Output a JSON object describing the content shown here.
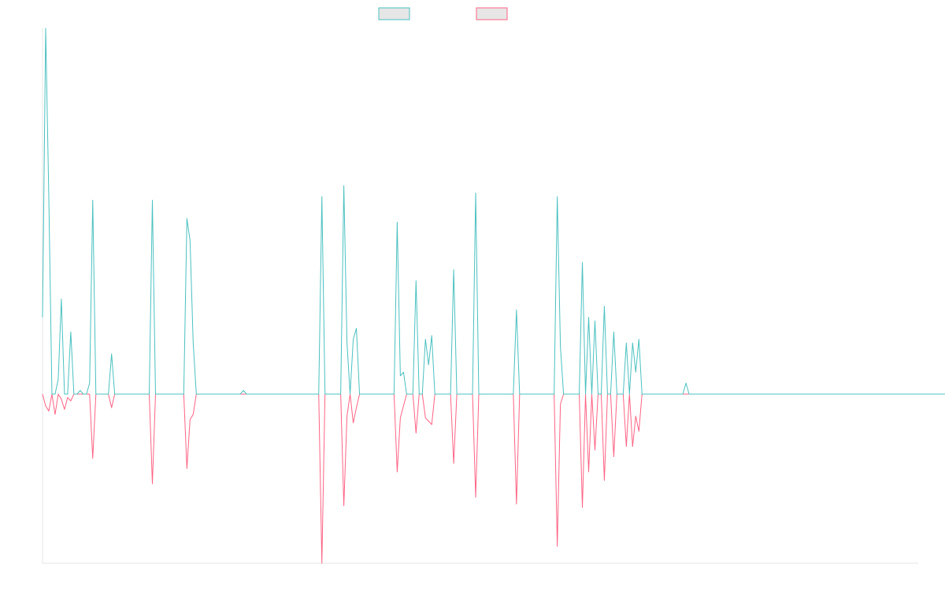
{
  "chart_data": {
    "type": "line",
    "title": "",
    "xlabel": "",
    "ylabel": "",
    "grid": false,
    "legend_position": "top-center",
    "ylim": [
      -100,
      100
    ],
    "baseline": 0,
    "series": [
      {
        "color": "#4bc0c0",
        "legend_fill": "#e6e6e6",
        "values": [
          21,
          100,
          54,
          0,
          0,
          4,
          26,
          0,
          0,
          17,
          0,
          0,
          1,
          0,
          0,
          3,
          53,
          0,
          0,
          0,
          0,
          0,
          11,
          0,
          0,
          0,
          0,
          0,
          0,
          0,
          0,
          0,
          0,
          0,
          0,
          0,
          0,
          0,
          0,
          0,
          0,
          0,
          0,
          0,
          0,
          0,
          0,
          0,
          0,
          0,
          0,
          0,
          0,
          0,
          0,
          0,
          0,
          0,
          0,
          0,
          0,
          0,
          0,
          0,
          0,
          0,
          0,
          0,
          0,
          0,
          0,
          0,
          0,
          0,
          0,
          0,
          0,
          0,
          0,
          0,
          0,
          0,
          0,
          0,
          0,
          0,
          0,
          0,
          0,
          0,
          0,
          0,
          0,
          0,
          0,
          0,
          0,
          0,
          0,
          0,
          0,
          0,
          0,
          0,
          0,
          0,
          0,
          0,
          0,
          0,
          0,
          0,
          0,
          0,
          0,
          0,
          0,
          0,
          0,
          0,
          0,
          0,
          0,
          0,
          0,
          0,
          0,
          0,
          0,
          0,
          0,
          0,
          0,
          0,
          0,
          0,
          0,
          0,
          0,
          0,
          0,
          0,
          0,
          0,
          0,
          0,
          0,
          0,
          0,
          0,
          0,
          0,
          0,
          0,
          0,
          0,
          0,
          0,
          0,
          0,
          0,
          0,
          0,
          0,
          0,
          0,
          0,
          0,
          0,
          0,
          0,
          0,
          0,
          0,
          0,
          0,
          0,
          0,
          0,
          0,
          0,
          0,
          0,
          0,
          0,
          0,
          0,
          0,
          0,
          0,
          0,
          0,
          0,
          0,
          0,
          0,
          0,
          0,
          0,
          0,
          0,
          0,
          0,
          0,
          0,
          0,
          0,
          0,
          0,
          0,
          0,
          0,
          0,
          0,
          0,
          0,
          0,
          0,
          0,
          0,
          0,
          0,
          0,
          0,
          0,
          0,
          0,
          0,
          0,
          0,
          0,
          0,
          0,
          0,
          0,
          0,
          0,
          0,
          0,
          0,
          0,
          0,
          0,
          0,
          0,
          0,
          0,
          0,
          0,
          0,
          0,
          0,
          0,
          0,
          0,
          0,
          0,
          0,
          0,
          0,
          0,
          0,
          0,
          0,
          0,
          0,
          0,
          0,
          0,
          0,
          0,
          0,
          0,
          0,
          0,
          0,
          0,
          0,
          0,
          0,
          0,
          0,
          0,
          0,
          0,
          0,
          0,
          0,
          0,
          0,
          0,
          0,
          0,
          0,
          0,
          0,
          0
        ]
      },
      {
        "color": "#ff6384",
        "legend_fill": "#e6e6e6",
        "values": [
          0,
          -7,
          -10,
          0,
          -12,
          0,
          -3,
          -9,
          -2,
          -4,
          0,
          0,
          0,
          0,
          0,
          0,
          -38,
          0,
          0,
          0,
          0,
          0,
          -8,
          0,
          0,
          0,
          0,
          0,
          0,
          0,
          0,
          0,
          0,
          0,
          0,
          0,
          0,
          0,
          0,
          0,
          0,
          0,
          0,
          0,
          0,
          0,
          0,
          0,
          0,
          0,
          0,
          0,
          0,
          0,
          0,
          0,
          0,
          0,
          0,
          0,
          0,
          0,
          0,
          0,
          0,
          0,
          0,
          0,
          0,
          0,
          0,
          0,
          0,
          0,
          0,
          0,
          0,
          0,
          0,
          0,
          0,
          0,
          0,
          0,
          0,
          0,
          0,
          0,
          0,
          0,
          0,
          0,
          0,
          0,
          0,
          0,
          0,
          0,
          0,
          0,
          0,
          0,
          0,
          0,
          0,
          0,
          0,
          0,
          0,
          0,
          0,
          0,
          0,
          0,
          0,
          0,
          0,
          0,
          0,
          0,
          0,
          0,
          0,
          0,
          0,
          0,
          0,
          0,
          0,
          0,
          0,
          0,
          0,
          0,
          0,
          0,
          0,
          0,
          0,
          0,
          0,
          0,
          0,
          0,
          0,
          0,
          0,
          0,
          0,
          0,
          0,
          0,
          0,
          0,
          0,
          0,
          0,
          0,
          0,
          0,
          0,
          0,
          0,
          0,
          0,
          0,
          0,
          0,
          0,
          0,
          0,
          0,
          0,
          0,
          0,
          0,
          0,
          0,
          0,
          0,
          0,
          0,
          0,
          0,
          0,
          0,
          0,
          0,
          0,
          0,
          0,
          0,
          0,
          0,
          0,
          0,
          0,
          0,
          0,
          0,
          0,
          0,
          0,
          0,
          0,
          0,
          0,
          0,
          0,
          0,
          0,
          0,
          0,
          0,
          0,
          0,
          0,
          0,
          0,
          0,
          0,
          0,
          0,
          0,
          0,
          0,
          0,
          0,
          0,
          0,
          0,
          0,
          0,
          0,
          0,
          0,
          0,
          0,
          0,
          0,
          0,
          0,
          0,
          0,
          0,
          0,
          0,
          0,
          0,
          0,
          0,
          0,
          0,
          0,
          0,
          0,
          0,
          0,
          0,
          0,
          0,
          0,
          0,
          0,
          0,
          0,
          0,
          0,
          0,
          0,
          0,
          0,
          0,
          0,
          0,
          0,
          0,
          0,
          0,
          0,
          0,
          0,
          0,
          0,
          0,
          0,
          0,
          0,
          0,
          0,
          0,
          0,
          0,
          0,
          0
        ]
      }
    ],
    "events": [
      {
        "i": 35,
        "pos": 53,
        "neg": -53
      },
      {
        "i": 46,
        "pos": 48,
        "neg": -44
      },
      {
        "i": 47,
        "pos": 42,
        "neg": -15
      },
      {
        "i": 48,
        "pos": 14,
        "neg": -12
      },
      {
        "i": 64,
        "pos": 1,
        "neg": 0
      },
      {
        "i": 71,
        "pos": 0,
        "neg": 0
      },
      {
        "i": 89,
        "pos": 54,
        "neg": -100
      },
      {
        "i": 96,
        "pos": 57,
        "neg": -66
      },
      {
        "i": 97,
        "pos": 14,
        "neg": -13
      },
      {
        "i": 98,
        "pos": 0,
        "neg": 0
      },
      {
        "i": 99,
        "pos": 15,
        "neg": -17
      },
      {
        "i": 100,
        "pos": 18,
        "neg": -8
      },
      {
        "i": 113,
        "pos": 47,
        "neg": -46
      },
      {
        "i": 114,
        "pos": 5,
        "neg": -14
      },
      {
        "i": 115,
        "pos": 6,
        "neg": -7
      },
      {
        "i": 119,
        "pos": 31,
        "neg": -23
      },
      {
        "i": 121,
        "pos": 0,
        "neg": 0
      },
      {
        "i": 122,
        "pos": 15,
        "neg": -14
      },
      {
        "i": 123,
        "pos": 8,
        "neg": -16
      },
      {
        "i": 124,
        "pos": 16,
        "neg": -18
      },
      {
        "i": 131,
        "pos": 34,
        "neg": -41
      },
      {
        "i": 138,
        "pos": 55,
        "neg": -61
      },
      {
        "i": 151,
        "pos": 23,
        "neg": -65
      },
      {
        "i": 164,
        "pos": 54,
        "neg": -90
      },
      {
        "i": 165,
        "pos": 13,
        "neg": -6
      },
      {
        "i": 172,
        "pos": 36,
        "neg": -67
      },
      {
        "i": 174,
        "pos": 21,
        "neg": -46
      },
      {
        "i": 176,
        "pos": 20,
        "neg": -33
      },
      {
        "i": 177,
        "pos": 0,
        "neg": 0
      },
      {
        "i": 179,
        "pos": 24,
        "neg": -51
      },
      {
        "i": 182,
        "pos": 17,
        "neg": -37
      },
      {
        "i": 183,
        "pos": 0,
        "neg": 0
      },
      {
        "i": 186,
        "pos": 14,
        "neg": -31
      },
      {
        "i": 188,
        "pos": 14,
        "neg": -31
      },
      {
        "i": 189,
        "pos": 6,
        "neg": -13
      },
      {
        "i": 190,
        "pos": 15,
        "neg": -22
      },
      {
        "i": 205,
        "pos": 3,
        "neg": 0
      }
    ]
  }
}
